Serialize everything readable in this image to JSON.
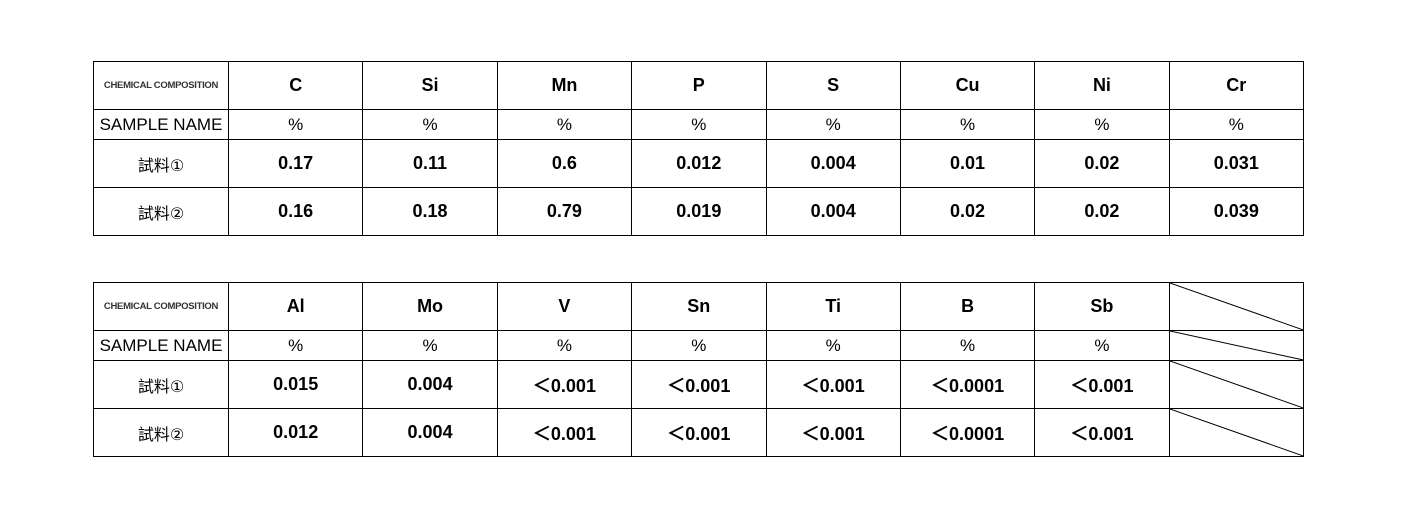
{
  "tables": [
    {
      "header": [
        "CHEMICAL COMPOSITION",
        "C",
        "Si",
        "Mn",
        "P",
        "S",
        "Cu",
        "Ni",
        "Cr"
      ],
      "unit_row": [
        "SAMPLE NAME",
        "%",
        "%",
        "%",
        "%",
        "%",
        "%",
        "%",
        "%"
      ],
      "rows": [
        [
          "試料①",
          "0.17",
          "0.11",
          "0.6",
          "0.012",
          "0.004",
          "0.01",
          "0.02",
          "0.031"
        ],
        [
          "試料②",
          "0.16",
          "0.18",
          "0.79",
          "0.019",
          "0.004",
          "0.02",
          "0.02",
          "0.039"
        ]
      ]
    },
    {
      "header": [
        "CHEMICAL COMPOSITION",
        "Al",
        "Mo",
        "V",
        "Sn",
        "Ti",
        "B",
        "Sb"
      ],
      "unit_row": [
        "SAMPLE NAME",
        "%",
        "%",
        "%",
        "%",
        "%",
        "%",
        "%"
      ],
      "rows": [
        [
          "試料①",
          "0.015",
          "0.004",
          "＜0.001",
          "＜0.001",
          "＜0.001",
          "＜0.0001",
          "＜0.001"
        ],
        [
          "試料②",
          "0.012",
          "0.004",
          "＜0.001",
          "＜0.001",
          "＜0.001",
          "＜0.0001",
          "＜0.001"
        ]
      ]
    }
  ]
}
